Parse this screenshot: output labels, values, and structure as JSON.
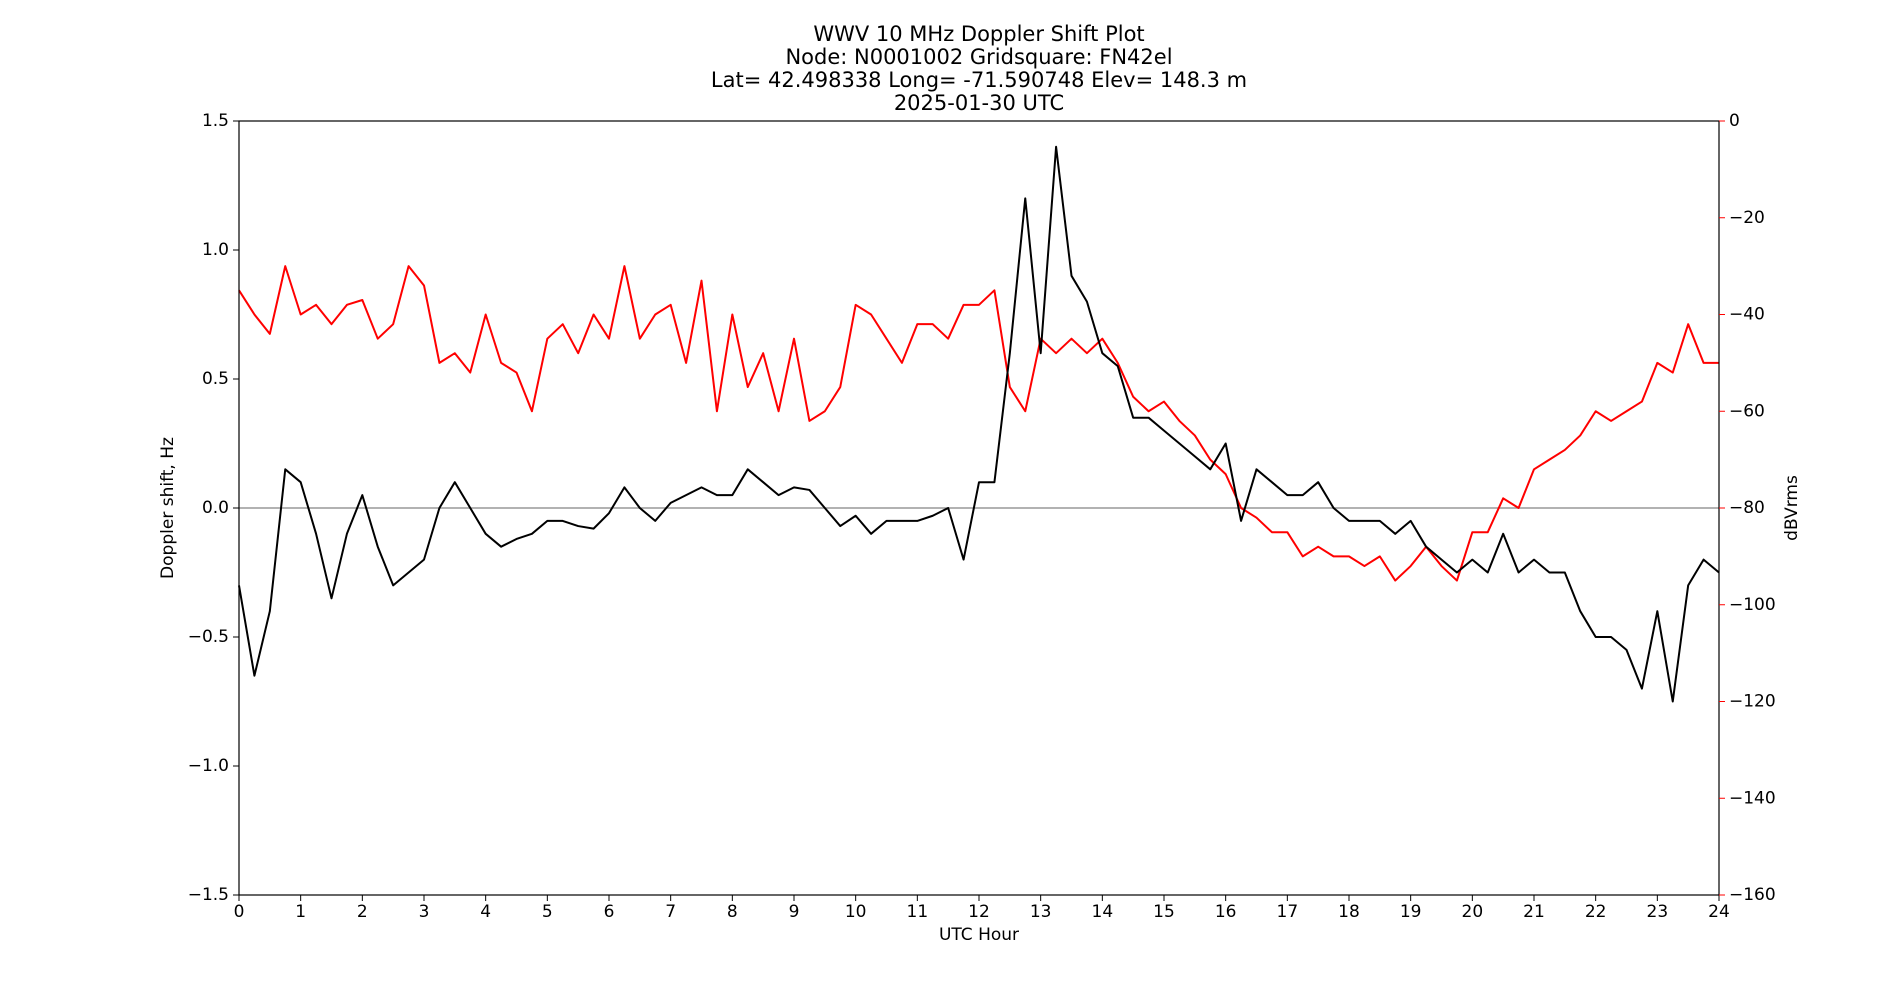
{
  "chart_data": {
    "type": "line",
    "title_lines": [
      "WWV 10 MHz Doppler Shift Plot",
      "Node:  N0001002     Gridsquare:  FN42el",
      "Lat= 42.498338    Long= -71.590748    Elev= 148.3 m",
      "2025-01-30  UTC"
    ],
    "xlabel": "UTC Hour",
    "ylabel": "Doppler shift, Hz",
    "y2label": "dBVrms",
    "y2color": "#ff0000",
    "x": [
      0,
      0.25,
      0.5,
      0.75,
      1,
      1.25,
      1.5,
      1.75,
      2,
      2.25,
      2.5,
      2.75,
      3,
      3.25,
      3.5,
      3.75,
      4,
      4.25,
      4.5,
      4.75,
      5,
      5.25,
      5.5,
      5.75,
      6,
      6.25,
      6.5,
      6.75,
      7,
      7.25,
      7.5,
      7.75,
      8,
      8.25,
      8.5,
      8.75,
      9,
      9.25,
      9.5,
      9.75,
      10,
      10.25,
      10.5,
      10.75,
      11,
      11.25,
      11.5,
      11.75,
      12,
      12.25,
      12.5,
      12.75,
      13,
      13.25,
      13.5,
      13.75,
      14,
      14.25,
      14.5,
      14.75,
      15,
      15.25,
      15.5,
      15.75,
      16,
      16.25,
      16.5,
      16.75,
      17,
      17.25,
      17.5,
      17.75,
      18,
      18.25,
      18.5,
      18.75,
      19,
      19.25,
      19.5,
      19.75,
      20,
      20.25,
      20.5,
      20.75,
      21,
      21.25,
      21.5,
      21.75,
      22,
      22.25,
      22.5,
      22.75,
      23,
      23.25,
      23.5,
      23.75,
      24
    ],
    "series": [
      {
        "name": "Doppler shift",
        "color": "#000000",
        "axis": "y",
        "values": [
          -0.3,
          -0.65,
          -0.4,
          0.15,
          0.1,
          -0.1,
          -0.35,
          -0.1,
          0.05,
          -0.15,
          -0.3,
          -0.25,
          -0.2,
          0.0,
          0.1,
          0.0,
          -0.1,
          -0.15,
          -0.12,
          -0.1,
          -0.05,
          -0.05,
          -0.07,
          -0.08,
          -0.02,
          0.08,
          0.0,
          -0.05,
          0.02,
          0.05,
          0.08,
          0.05,
          0.05,
          0.15,
          0.1,
          0.05,
          0.08,
          0.07,
          0.0,
          -0.07,
          -0.03,
          -0.1,
          -0.05,
          -0.05,
          -0.05,
          -0.03,
          0.0,
          -0.2,
          0.1,
          0.1,
          0.6,
          1.2,
          0.6,
          1.4,
          0.9,
          0.8,
          0.6,
          0.55,
          0.35,
          0.35,
          0.3,
          0.25,
          0.2,
          0.15,
          0.25,
          -0.05,
          0.15,
          0.1,
          0.05,
          0.05,
          0.1,
          0.0,
          -0.05,
          -0.05,
          -0.05,
          -0.1,
          -0.05,
          -0.15,
          -0.2,
          -0.25,
          -0.2,
          -0.25,
          -0.1,
          -0.25,
          -0.2,
          -0.25,
          -0.25,
          -0.4,
          -0.5,
          -0.5,
          -0.55,
          -0.7,
          -0.4,
          -0.75,
          -0.3,
          -0.2,
          -0.25
        ]
      },
      {
        "name": "dBVrms",
        "color": "#ff0000",
        "axis": "y2",
        "values": [
          -35,
          -40,
          -44,
          -30,
          -40,
          -38,
          -42,
          -38,
          -37,
          -45,
          -42,
          -30,
          -34,
          -50,
          -48,
          -52,
          -40,
          -50,
          -52,
          -60,
          -45,
          -42,
          -48,
          -40,
          -45,
          -30,
          -45,
          -40,
          -38,
          -50,
          -33,
          -60,
          -40,
          -55,
          -48,
          -60,
          -45,
          -62,
          -60,
          -55,
          -38,
          -40,
          -45,
          -50,
          -42,
          -42,
          -45,
          -38,
          -38,
          -35,
          -55,
          -60,
          -45,
          -48,
          -45,
          -48,
          -45,
          -50,
          -57,
          -60,
          -58,
          -62,
          -65,
          -70,
          -73,
          -80,
          -82,
          -85,
          -85,
          -90,
          -88,
          -90,
          -90,
          -92,
          -90,
          -95,
          -92,
          -88,
          -92,
          -95,
          -85,
          -85,
          -78,
          -80,
          -72,
          -70,
          -68,
          -65,
          -60,
          -62,
          -60,
          -58,
          -50,
          -52,
          -42,
          -50,
          -50
        ]
      }
    ],
    "reference_line": 0,
    "xlim": [
      0,
      24
    ],
    "xticks": [
      0,
      1,
      2,
      3,
      4,
      5,
      6,
      7,
      8,
      9,
      10,
      11,
      12,
      13,
      14,
      15,
      16,
      17,
      18,
      19,
      20,
      21,
      22,
      23,
      24
    ],
    "ylim": [
      -1.5,
      1.5
    ],
    "yticks": [
      {
        "value": -1.5,
        "label": "−1.5"
      },
      {
        "value": -1.0,
        "label": "−1.0"
      },
      {
        "value": -0.5,
        "label": "−0.5"
      },
      {
        "value": 0,
        "label": "0.0"
      },
      0.5,
      {
        "value": 1.0,
        "label": "1.0"
      },
      1.5
    ],
    "y2lim": [
      -160,
      0
    ],
    "y2ticks": [
      {
        "value": -160,
        "label": "−160"
      },
      {
        "value": -140,
        "label": "−140"
      },
      {
        "value": -120,
        "label": "−120"
      },
      {
        "value": -100,
        "label": "−100"
      },
      {
        "value": -80,
        "label": "−80"
      },
      {
        "value": -60,
        "label": "−60"
      },
      {
        "value": -40,
        "label": "−40"
      },
      {
        "value": -20,
        "label": "−20"
      },
      0
    ]
  }
}
